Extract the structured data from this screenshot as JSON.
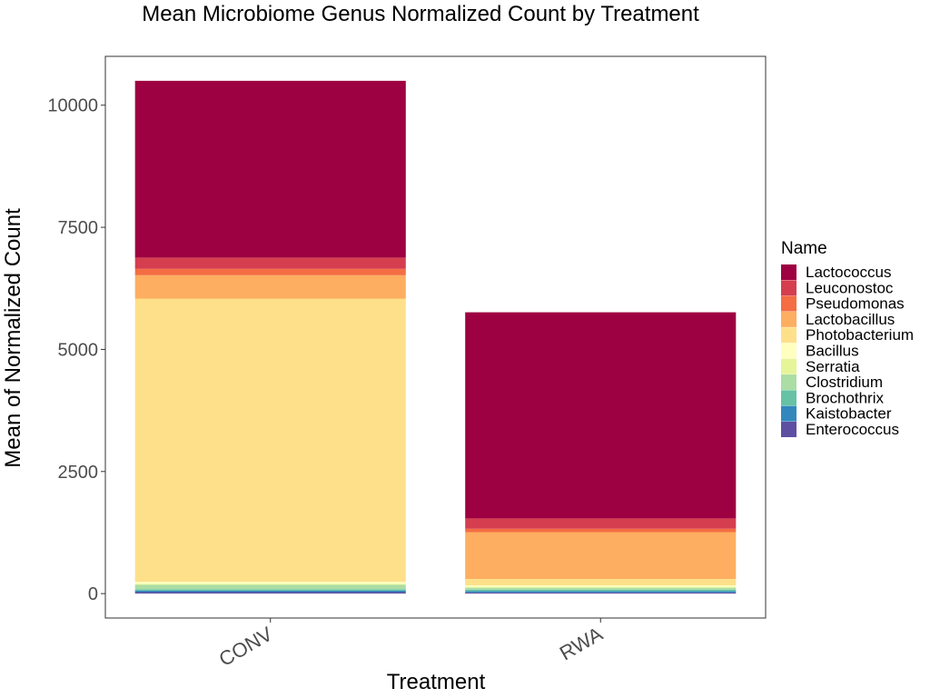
{
  "chart_data": {
    "type": "bar",
    "stacked": true,
    "title": "Mean Microbiome Genus Normalized Count by Treatment",
    "xlabel": "Treatment",
    "ylabel": "Mean of Normalized Count",
    "categories": [
      "CONV",
      "RWA"
    ],
    "ylim": [
      -500,
      11000
    ],
    "yticks": [
      0,
      2500,
      5000,
      7500,
      10000
    ],
    "grid": false,
    "legend": {
      "title": "Name",
      "position": "right"
    },
    "series": [
      {
        "name": "Lactococcus",
        "color": "#9E0142",
        "values": [
          3620,
          4220
        ]
      },
      {
        "name": "Leuconostoc",
        "color": "#D53E4F",
        "values": [
          230,
          210
        ]
      },
      {
        "name": "Pseudomonas",
        "color": "#F46D43",
        "values": [
          130,
          70
        ]
      },
      {
        "name": "Lactobacillus",
        "color": "#FDAE61",
        "values": [
          480,
          960
        ]
      },
      {
        "name": "Photobacterium",
        "color": "#FEE08B",
        "values": [
          5800,
          130
        ]
      },
      {
        "name": "Bacillus",
        "color": "#FFFFBF",
        "values": [
          40,
          30
        ]
      },
      {
        "name": "Serratia",
        "color": "#E6F598",
        "values": [
          20,
          20
        ]
      },
      {
        "name": "Clostridium",
        "color": "#ABDDA4",
        "values": [
          90,
          40
        ]
      },
      {
        "name": "Brochothrix",
        "color": "#66C2A5",
        "values": [
          30,
          30
        ]
      },
      {
        "name": "Kaistobacter",
        "color": "#3288BD",
        "values": [
          30,
          30
        ]
      },
      {
        "name": "Enterococcus",
        "color": "#5E4FA2",
        "values": [
          30,
          20
        ]
      }
    ]
  }
}
